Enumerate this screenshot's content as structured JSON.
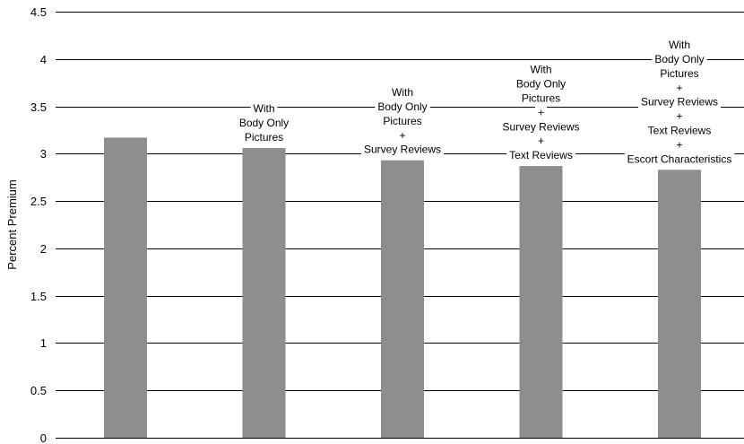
{
  "chart_data": {
    "type": "bar",
    "ylabel": "Percent Premium",
    "ylim": [
      0,
      4.5
    ],
    "yticks": [
      "0",
      "0.5",
      "1",
      "1.5",
      "2",
      "2.5",
      "3",
      "3.5",
      "4",
      "4.5"
    ],
    "grid": true,
    "bar_color": "#8e8e90",
    "bars": [
      {
        "value": 3.17,
        "annotation": []
      },
      {
        "value": 3.06,
        "annotation": [
          "With",
          "Body Only",
          "Pictures"
        ]
      },
      {
        "value": 2.93,
        "annotation": [
          "With",
          "Body Only",
          "Pictures",
          "+",
          "Survey Reviews"
        ]
      },
      {
        "value": 2.87,
        "annotation": [
          "With",
          "Body Only",
          "Pictures",
          "+",
          "Survey Reviews",
          "+",
          "Text Reviews"
        ]
      },
      {
        "value": 2.83,
        "annotation": [
          "With",
          "Body Only",
          "Pictures",
          "+",
          "Survey Reviews",
          "+",
          "Text Reviews",
          "+",
          "Escort Characteristics"
        ]
      }
    ]
  }
}
